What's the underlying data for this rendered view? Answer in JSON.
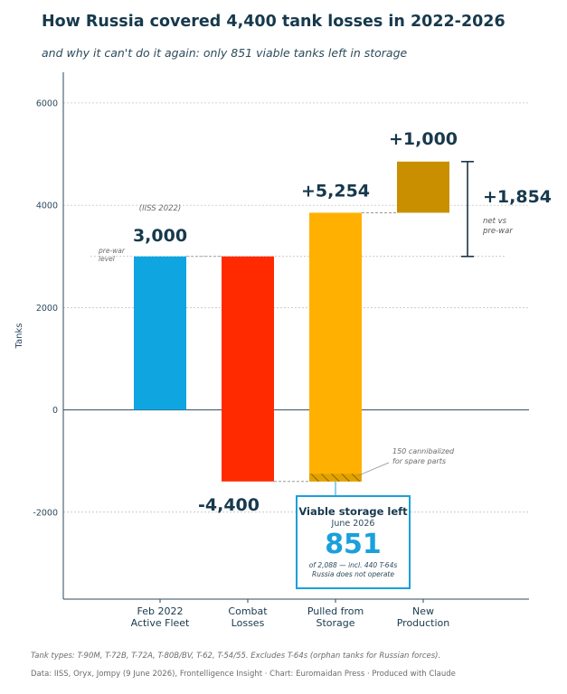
{
  "title": "How Russia covered 4,400 tank losses in 2022-2026",
  "subtitle": "and why it can't do it again: only 851 viable tanks left in storage",
  "chart_data": {
    "type": "waterfall",
    "ylabel": "Tanks",
    "ylim": [
      -3700,
      6600
    ],
    "yticks": [
      -2000,
      0,
      2000,
      4000,
      6000
    ],
    "ytick_labels": [
      "-2000",
      "0",
      "2000",
      "4000",
      "6000"
    ],
    "categories": [
      [
        "Feb 2022",
        "Active Fleet"
      ],
      [
        "Combat",
        "Losses"
      ],
      [
        "Pulled from",
        "Storage"
      ],
      [
        "New",
        "Production"
      ]
    ],
    "bars": [
      {
        "start": 0,
        "end": 3000,
        "value_label": "3,000",
        "color": "#0ea5e1"
      },
      {
        "start": 3000,
        "end": -1400,
        "value_label": "-4,400",
        "color": "#ff2a00"
      },
      {
        "start": -1400,
        "end": 3854,
        "value_label": "+5,254",
        "color": "#ffb000"
      },
      {
        "start": 3854,
        "end": 4854,
        "value_label": "+1,000",
        "color": "#c98f00"
      }
    ],
    "hatched_segment": {
      "bar": 2,
      "from": -1400,
      "to": -1250,
      "label_lines": [
        "150 cannibalized",
        "for spare parts"
      ]
    },
    "reference_line": {
      "value": 3000,
      "label_lines": [
        "pre-war",
        "level"
      ]
    },
    "source_annotation": "(IISS 2022)",
    "net_change": {
      "from": 3000,
      "to": 4854,
      "label": "+1,854",
      "note_lines": [
        "net vs",
        "pre-war"
      ]
    },
    "colors": {
      "axis": "#2e4a5c",
      "grid": "#bbbbbb",
      "connector": "#8a8a8a",
      "bracket": "#1c3346",
      "text": "#17394d"
    }
  },
  "callout": {
    "title": "Viable storage left",
    "date": "June 2026",
    "value": "851",
    "note_lines": [
      "of 2,088 — incl. 440 T-64s",
      "Russia does not operate"
    ]
  },
  "footnote": "Tank types: T-90M, T-72B, T-72A, T-80B/BV, T-62, T-54/55. Excludes T-64s (orphan tanks for Russian forces).",
  "source": "Data: IISS, Oryx, Jompy (9 June 2026), Frontelligence Insight  ·  Chart: Euromaidan Press  ·  Produced with Claude"
}
